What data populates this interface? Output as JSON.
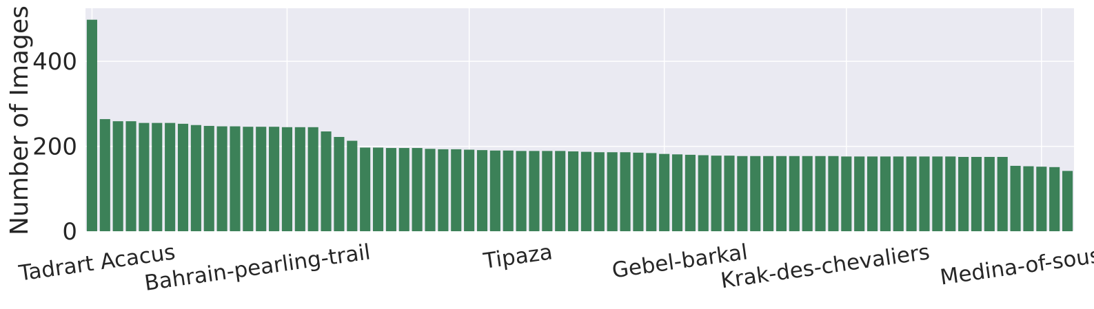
{
  "chart_data": {
    "type": "bar",
    "title": "",
    "xlabel": "",
    "ylabel": "Number of Images",
    "ylim": [
      0,
      525
    ],
    "yticks": [
      0,
      200,
      400
    ],
    "grid": true,
    "legend": "none",
    "bar_color": "#3c8158",
    "background_color": "#eaeaf2",
    "grid_color": "#ffffff",
    "values": [
      498,
      264,
      259,
      259,
      255,
      255,
      255,
      253,
      250,
      248,
      247,
      247,
      246,
      246,
      246,
      245,
      245,
      245,
      235,
      222,
      213,
      197,
      197,
      196,
      196,
      196,
      194,
      193,
      193,
      192,
      191,
      190,
      190,
      189,
      189,
      189,
      189,
      188,
      187,
      186,
      186,
      186,
      185,
      184,
      182,
      181,
      180,
      179,
      178,
      178,
      177,
      177,
      177,
      177,
      177,
      177,
      177,
      177,
      176,
      176,
      176,
      176,
      176,
      176,
      176,
      176,
      176,
      175,
      175,
      175,
      175,
      154,
      153,
      152,
      151,
      142
    ],
    "labeled_categories": [
      {
        "index": 0,
        "label": "Tadrart Acacus"
      },
      {
        "index": 15,
        "label": "Bahrain-pearling-trail"
      },
      {
        "index": 29,
        "label": "Tipaza"
      },
      {
        "index": 44,
        "label": "Gebel-barkal"
      },
      {
        "index": 58,
        "label": "Krak-des-chevaliers"
      },
      {
        "index": 73,
        "label": "Medina-of-sousse"
      }
    ]
  }
}
